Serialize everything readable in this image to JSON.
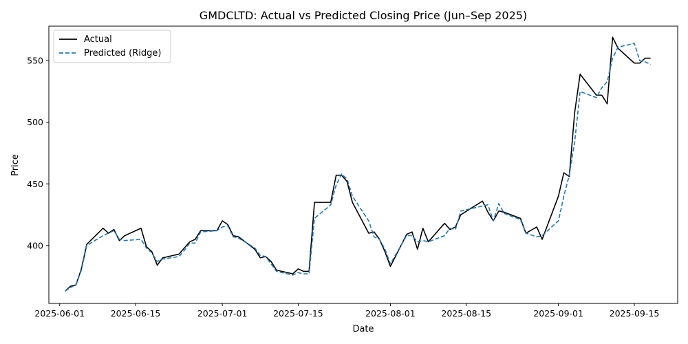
{
  "chart_data": {
    "type": "line",
    "title": "GMDCLTD: Actual vs Predicted Closing Price (Jun–Sep 2025)",
    "xlabel": "Date",
    "ylabel": "Price",
    "xlim": [
      "2025-05-30",
      "2025-09-23"
    ],
    "ylim": [
      353,
      578
    ],
    "x_ticks": [
      "2025-06-01",
      "2025-06-15",
      "2025-07-01",
      "2025-07-15",
      "2025-08-01",
      "2025-08-15",
      "2025-09-01",
      "2025-09-15"
    ],
    "y_ticks": [
      400,
      450,
      500,
      550
    ],
    "grid": false,
    "legend_position": "top-left",
    "dates": [
      "2025-06-02",
      "2025-06-03",
      "2025-06-04",
      "2025-06-05",
      "2025-06-06",
      "2025-06-09",
      "2025-06-10",
      "2025-06-11",
      "2025-06-12",
      "2025-06-13",
      "2025-06-16",
      "2025-06-17",
      "2025-06-18",
      "2025-06-19",
      "2025-06-20",
      "2025-06-23",
      "2025-06-24",
      "2025-06-25",
      "2025-06-26",
      "2025-06-27",
      "2025-06-30",
      "2025-07-01",
      "2025-07-02",
      "2025-07-03",
      "2025-07-04",
      "2025-07-07",
      "2025-07-08",
      "2025-07-09",
      "2025-07-10",
      "2025-07-11",
      "2025-07-14",
      "2025-07-15",
      "2025-07-16",
      "2025-07-17",
      "2025-07-18",
      "2025-07-21",
      "2025-07-22",
      "2025-07-23",
      "2025-07-24",
      "2025-07-25",
      "2025-07-28",
      "2025-07-29",
      "2025-07-30",
      "2025-07-31",
      "2025-08-01",
      "2025-08-04",
      "2025-08-05",
      "2025-08-06",
      "2025-08-07",
      "2025-08-08",
      "2025-08-11",
      "2025-08-12",
      "2025-08-13",
      "2025-08-14",
      "2025-08-18",
      "2025-08-19",
      "2025-08-20",
      "2025-08-21",
      "2025-08-22",
      "2025-08-25",
      "2025-08-26",
      "2025-08-28",
      "2025-08-29",
      "2025-09-01",
      "2025-09-02",
      "2025-09-03",
      "2025-09-04",
      "2025-09-05",
      "2025-09-08",
      "2025-09-09",
      "2025-09-10",
      "2025-09-11",
      "2025-09-12",
      "2025-09-15",
      "2025-09-16",
      "2025-09-17",
      "2025-09-18"
    ],
    "series": [
      {
        "name": "Actual",
        "color": "#000000",
        "style": "solid",
        "values": [
          363,
          367,
          368,
          381,
          401,
          414,
          410,
          413,
          404,
          408,
          414,
          399,
          395,
          384,
          390,
          393,
          398,
          403,
          405,
          412,
          412,
          420,
          417,
          408,
          407,
          397,
          390,
          391,
          387,
          380,
          377,
          381,
          379,
          379,
          435,
          435,
          457,
          457,
          452,
          435,
          410,
          411,
          405,
          395,
          383,
          409,
          411,
          397,
          414,
          403,
          418,
          413,
          415,
          425,
          436,
          427,
          420,
          428,
          427,
          422,
          410,
          415,
          405,
          440,
          459,
          456,
          508,
          539,
          522,
          522,
          515,
          569,
          560,
          548,
          548,
          552,
          552
        ],
        "values_note": "estimated from plot"
      },
      {
        "name": "Predicted (Ridge)",
        "color": "#1f77b4",
        "style": "dashed",
        "values": [
          363,
          366,
          368,
          380,
          400,
          408,
          410,
          412,
          405,
          404,
          405,
          398,
          394,
          387,
          389,
          391,
          396,
          402,
          402,
          411,
          412,
          415,
          416,
          407,
          406,
          398,
          392,
          391,
          385,
          379,
          376,
          378,
          377,
          377,
          422,
          433,
          449,
          458,
          454,
          440,
          420,
          407,
          405,
          397,
          385,
          408,
          408,
          403,
          404,
          403,
          408,
          414,
          413,
          428,
          432,
          433,
          420,
          434,
          426,
          421,
          410,
          407,
          408,
          420,
          440,
          457,
          484,
          525,
          520,
          528,
          533,
          552,
          561,
          564,
          550,
          549,
          547
        ],
        "values_note": "estimated from plot"
      }
    ]
  }
}
